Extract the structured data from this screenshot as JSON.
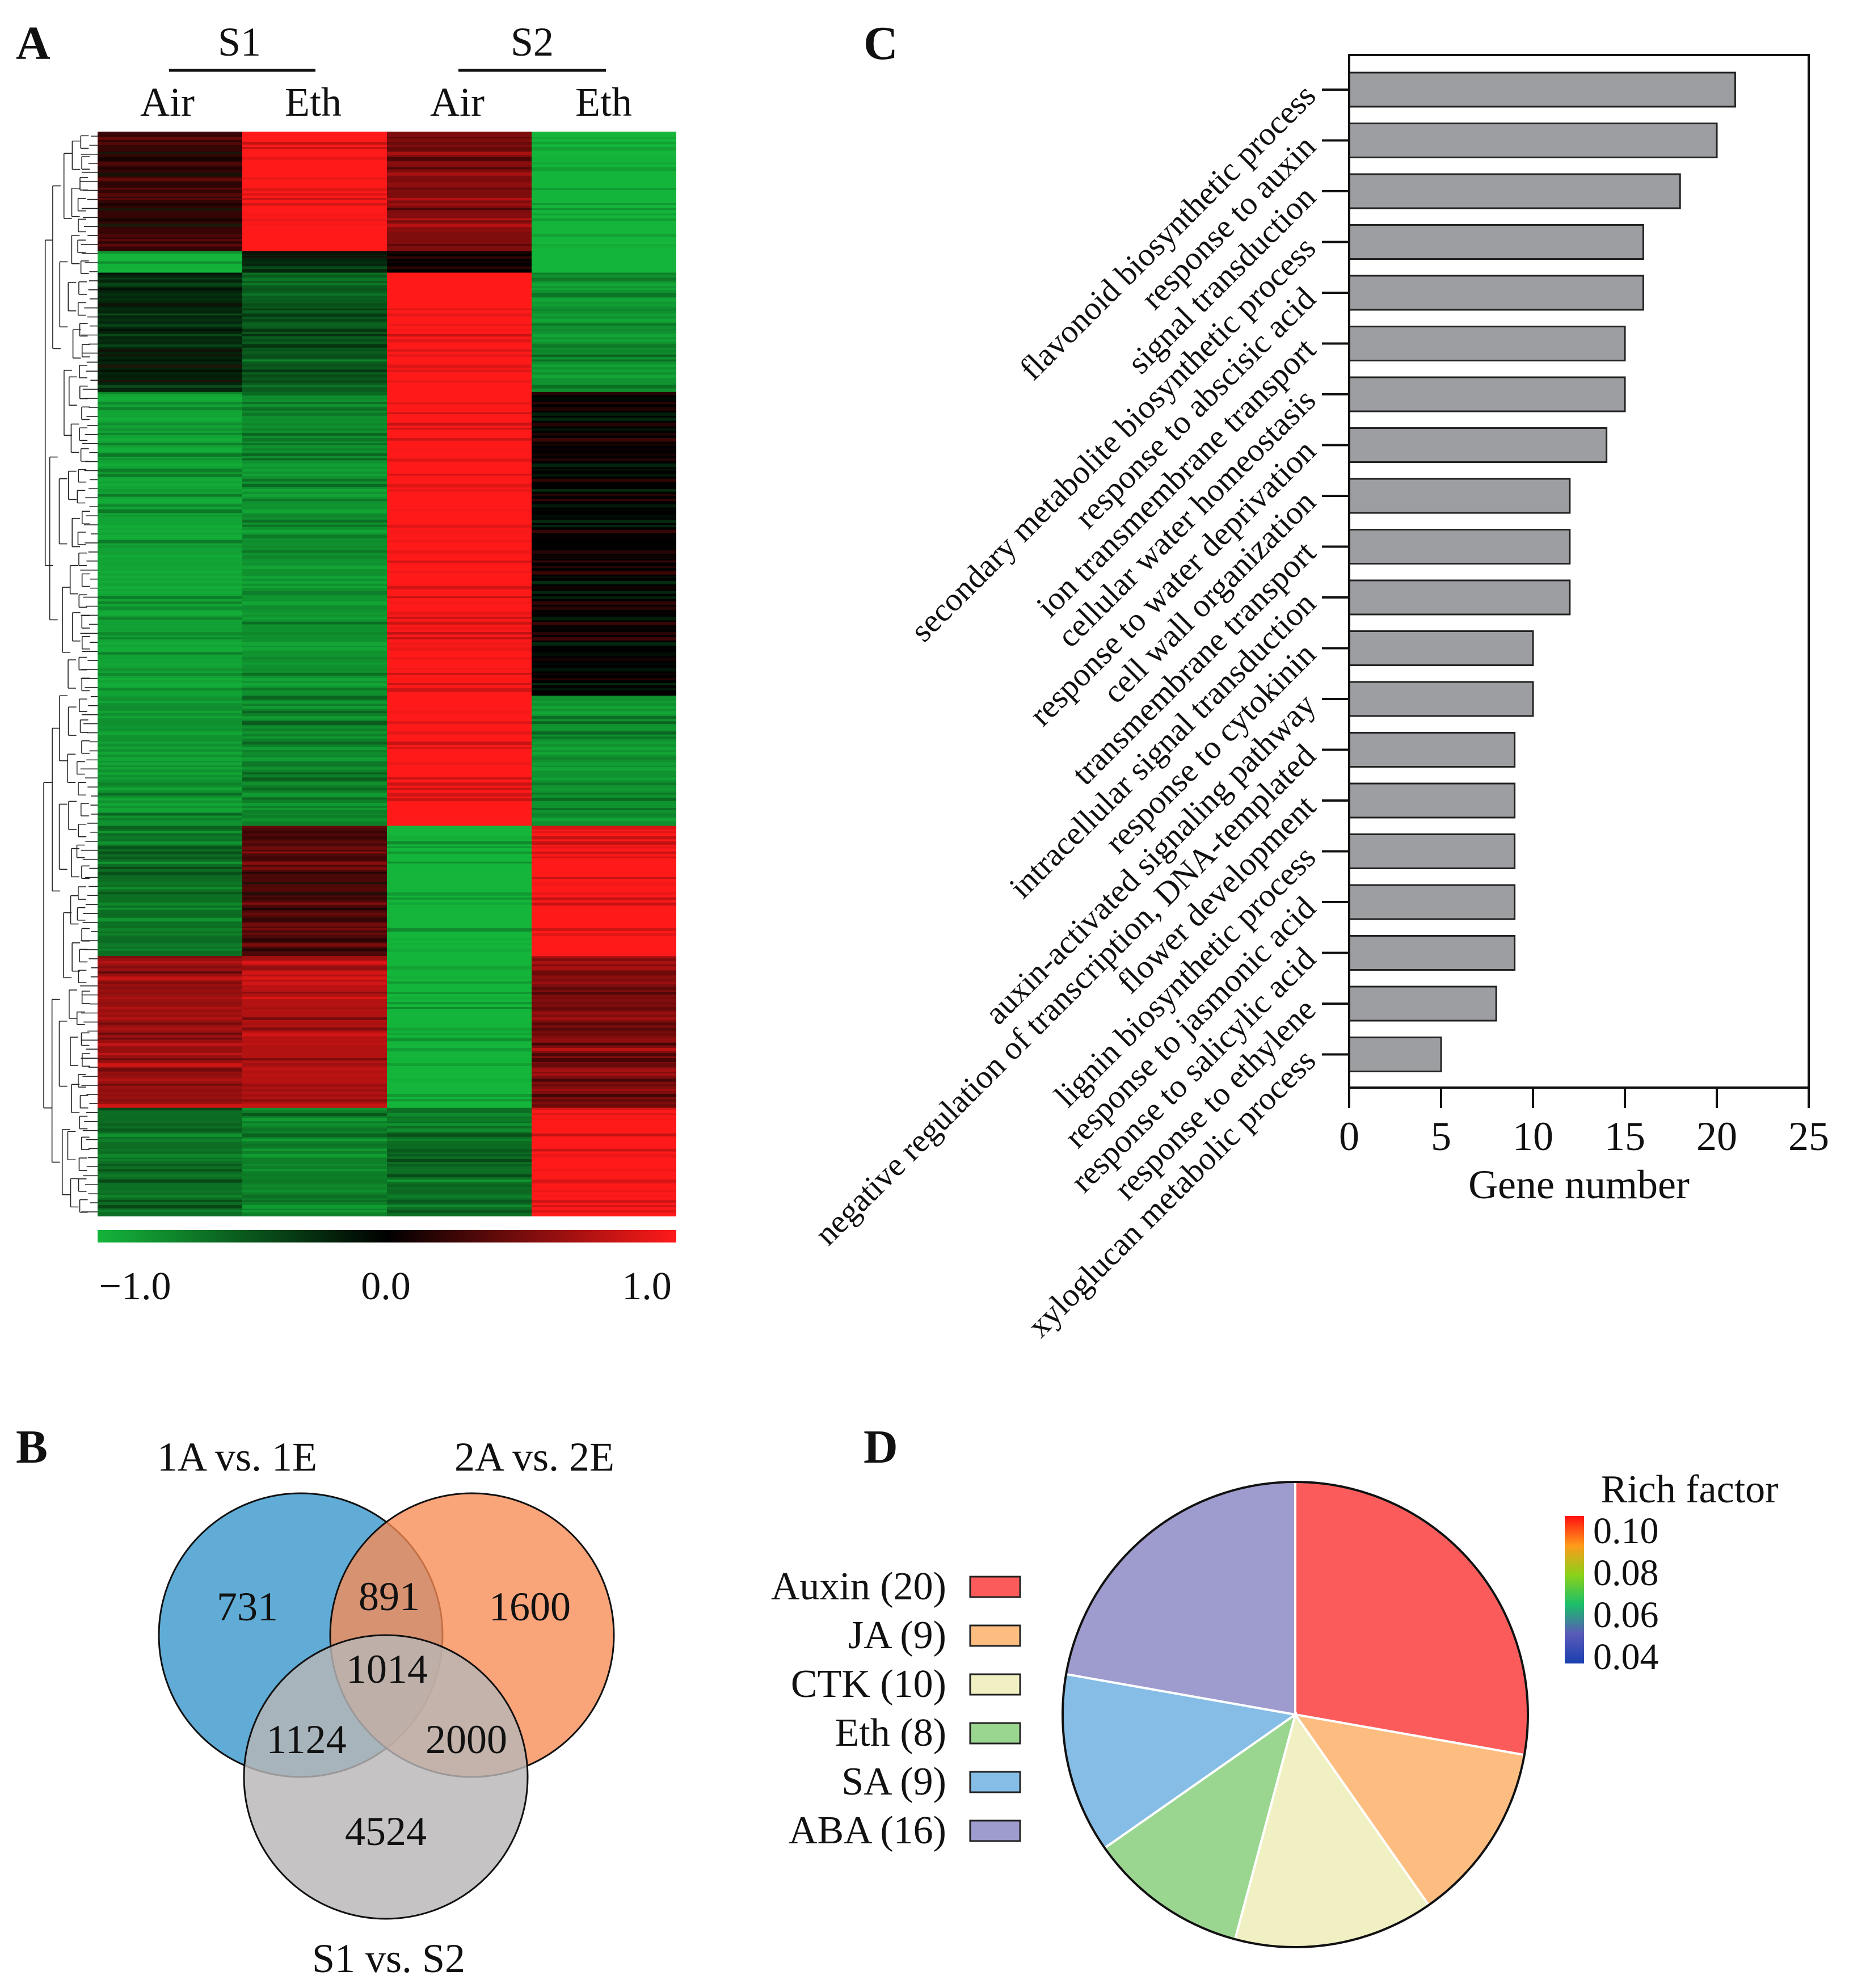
{
  "panel_labels": {
    "a": "A",
    "b": "B",
    "c": "C",
    "d": "D"
  },
  "chart_data": [
    {
      "type": "heatmap",
      "panel": "A",
      "groups": [
        {
          "label": "S1",
          "columns": [
            "Air",
            "Eth"
          ]
        },
        {
          "label": "S2",
          "columns": [
            "Air",
            "Eth"
          ]
        }
      ],
      "columns": [
        "S1 Air",
        "S1 Eth",
        "S2 Air",
        "S2 Eth"
      ],
      "color_scale": {
        "min": -1.0,
        "mid": 0.0,
        "max": 1.0,
        "low_color": "#14b53b",
        "mid_color": "#000000",
        "high_color": "#ff1a1a"
      },
      "scale_labels": [
        "−1.0",
        "0.0",
        "1.0"
      ],
      "row_clusters": [
        {
          "rows": 0.11,
          "values": [
            0.2,
            1.0,
            0.5,
            -1.0
          ]
        },
        {
          "rows": 0.02,
          "values": [
            -1.0,
            -0.2,
            0.0,
            -1.0
          ]
        },
        {
          "rows": 0.11,
          "values": [
            -0.2,
            -0.5,
            1.0,
            -0.8
          ]
        },
        {
          "rows": 0.28,
          "values": [
            -0.9,
            -0.8,
            1.0,
            0.0
          ]
        },
        {
          "rows": 0.12,
          "values": [
            -0.8,
            -0.7,
            1.0,
            -0.8
          ]
        },
        {
          "rows": 0.12,
          "values": [
            -0.6,
            0.3,
            -1.0,
            1.0
          ]
        },
        {
          "rows": 0.14,
          "values": [
            0.6,
            0.7,
            -1.0,
            0.5
          ]
        },
        {
          "rows": 0.1,
          "values": [
            -0.6,
            -0.7,
            -0.6,
            1.0
          ]
        }
      ]
    },
    {
      "type": "bar",
      "panel": "C",
      "orientation": "horizontal",
      "categories": [
        "flavonoid biosynthetic process",
        "response to auxin",
        "signal transduction",
        "secondary metabolite biosynthetic process",
        "response to abscisic acid",
        "ion transmembrane transport",
        "cellular water homeostasis",
        "response to water deprivation",
        "cell wall organization",
        "transmembrane transport",
        "intracellular signal transduction",
        "response to cytokinin",
        "auxin-activated signaling pathway",
        "negative regulation of transcription, DNA-templated",
        "flower development",
        "lignin biosynthetic process",
        "response to jasmonic acid",
        "response to salicylic acid",
        "response to ethylene",
        "xyloglucan metabolic process"
      ],
      "values": [
        21,
        20,
        18,
        16,
        16,
        15,
        15,
        14,
        12,
        12,
        12,
        10,
        10,
        9,
        9,
        9,
        9,
        9,
        8,
        5
      ],
      "xlabel": "Gene number",
      "xlim": [
        0,
        25
      ],
      "xticks": [
        "0",
        "5",
        "10",
        "15",
        "20",
        "25"
      ],
      "bar_color": "#9c9ea1"
    },
    {
      "type": "venn",
      "panel": "B",
      "sets": [
        {
          "label": "1A vs. 1E",
          "color": "#5aa8d3"
        },
        {
          "label": "2A vs. 2E",
          "color": "#f99a6c"
        },
        {
          "label": "S1 vs. S2",
          "color": "#c0bfbf"
        }
      ],
      "regions": {
        "only_1": "731",
        "only_2": "1600",
        "only_3": "4524",
        "1_2": "891",
        "1_3": "1124",
        "2_3": "2000",
        "1_2_3": "1014"
      }
    },
    {
      "type": "pie",
      "panel": "D",
      "labels": [
        "Auxin (20)",
        "JA (9)",
        "CTK (10)",
        "Eth (8)",
        "SA (9)",
        "ABA (16)"
      ],
      "values": [
        20,
        9,
        10,
        8,
        9,
        16
      ],
      "colors": [
        "#fc5b5b",
        "#fdbd80",
        "#f0f0c2",
        "#9ad68f",
        "#85bde6",
        "#9e9bce"
      ],
      "colorbar_title": "Rich factor",
      "colorbar_ticks": [
        "0.10",
        "0.08",
        "0.06",
        "0.04"
      ]
    }
  ]
}
